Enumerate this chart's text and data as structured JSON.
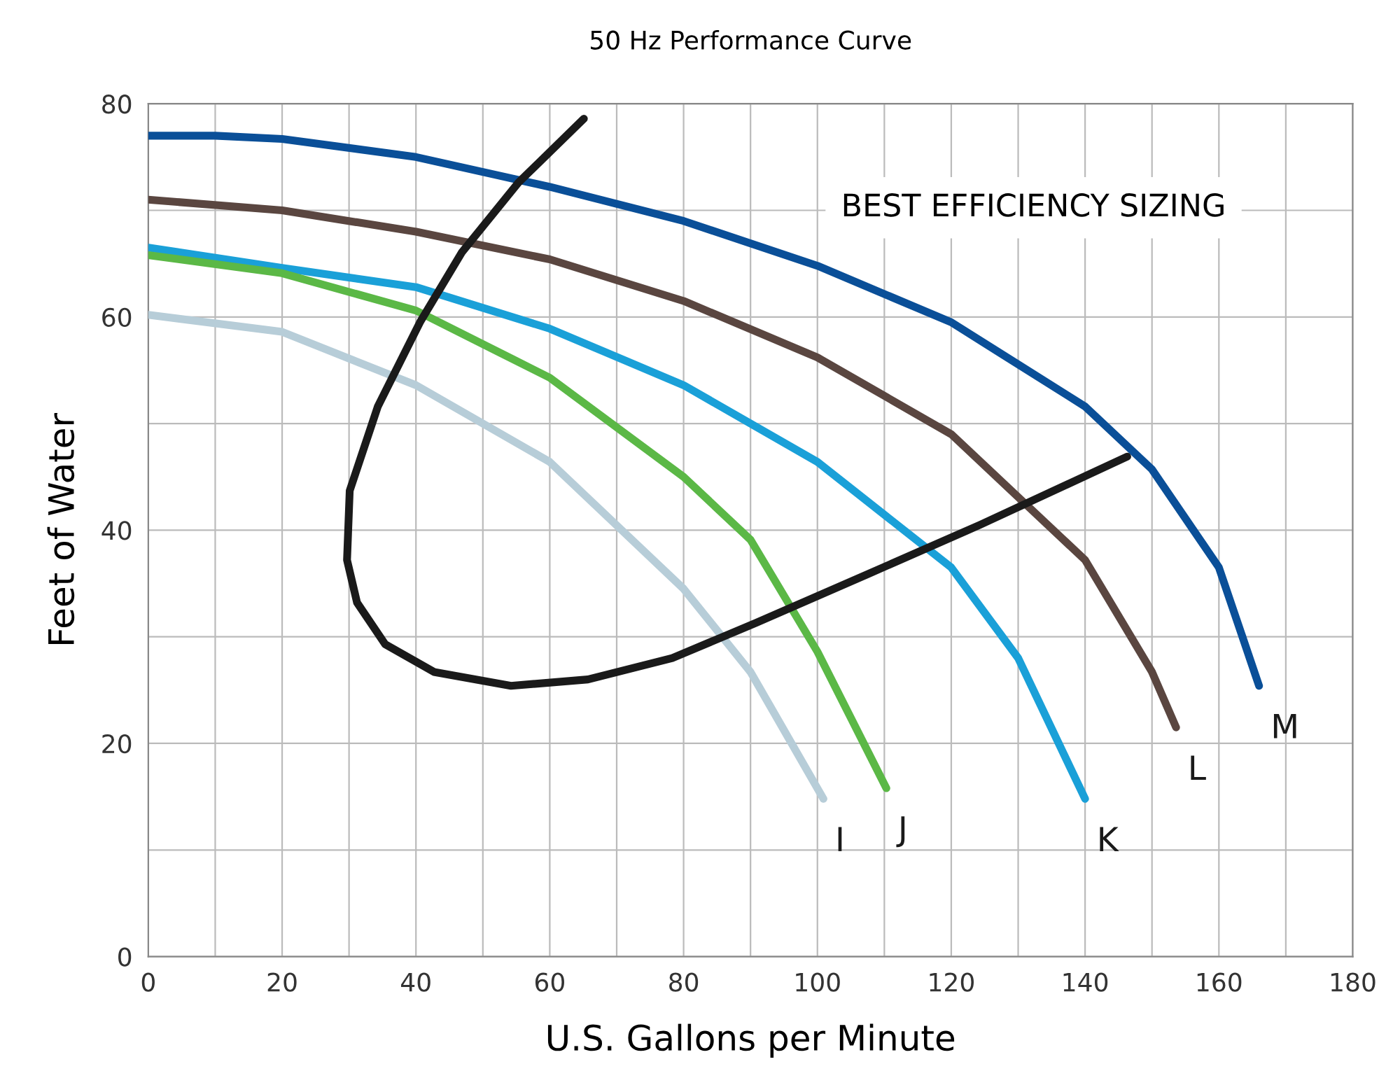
{
  "chart_data": {
    "type": "line",
    "title": "50 Hz Performance Curve",
    "xlabel": "U.S. Gallons per Minute",
    "ylabel": "Feet of Water",
    "annotations": [
      "BEST EFFICIENCY SIZING"
    ],
    "xlim": [
      0,
      180
    ],
    "ylim": [
      0,
      80
    ],
    "xticks": [
      0,
      20,
      40,
      60,
      80,
      100,
      120,
      140,
      160,
      180
    ],
    "yticks": [
      0,
      20,
      40,
      60,
      80
    ],
    "grid": true,
    "marker": "none",
    "line_style": "solid",
    "series": [
      {
        "name": "M",
        "color": "#0a4f98",
        "x": [
          0,
          10,
          20,
          40,
          60,
          80,
          100,
          120,
          140,
          150,
          160,
          166
        ],
        "values": [
          77,
          77,
          76.7,
          75,
          72.2,
          69,
          64.8,
          59.5,
          51.6,
          45.7,
          36.5,
          25.4
        ]
      },
      {
        "name": "L",
        "color": "#5a4640",
        "x": [
          0,
          20,
          40,
          60,
          80,
          100,
          120,
          140,
          150,
          153.6
        ],
        "values": [
          71,
          70,
          68,
          65.4,
          61.5,
          56.2,
          49,
          37.2,
          26.7,
          21.5
        ]
      },
      {
        "name": "K",
        "color": "#1aa0d8",
        "x": [
          0,
          20,
          40,
          60,
          80,
          100,
          120,
          130,
          140
        ],
        "values": [
          66.5,
          64.6,
          62.8,
          58.9,
          53.6,
          46.4,
          36.5,
          28,
          14.8
        ]
      },
      {
        "name": "J",
        "color": "#5bb846",
        "x": [
          0,
          20,
          40,
          60,
          80,
          90,
          100,
          110.3
        ],
        "values": [
          65.8,
          64.1,
          60.6,
          54.3,
          45,
          39.1,
          28.6,
          15.8
        ]
      },
      {
        "name": "I",
        "color": "#b7cdd8",
        "x": [
          0,
          20,
          40,
          60,
          80,
          90,
          100.9
        ],
        "values": [
          60.2,
          58.6,
          53.6,
          46.4,
          34.5,
          26.7,
          14.8
        ]
      },
      {
        "color": "#1a1a1a",
        "x": [
          65.1,
          55.3,
          46.9,
          40.6,
          34.3,
          30.1,
          29.7,
          31.2,
          35.4,
          42.7,
          54.2,
          65.7,
          78.3,
          90.8,
          107.6,
          124.3,
          146.3
        ],
        "values": [
          78.6,
          72.6,
          66.1,
          59.5,
          51.6,
          43.7,
          37.2,
          33.2,
          29.3,
          26.7,
          25.4,
          26,
          28,
          31.3,
          35.9,
          40.5,
          46.9
        ]
      }
    ]
  }
}
